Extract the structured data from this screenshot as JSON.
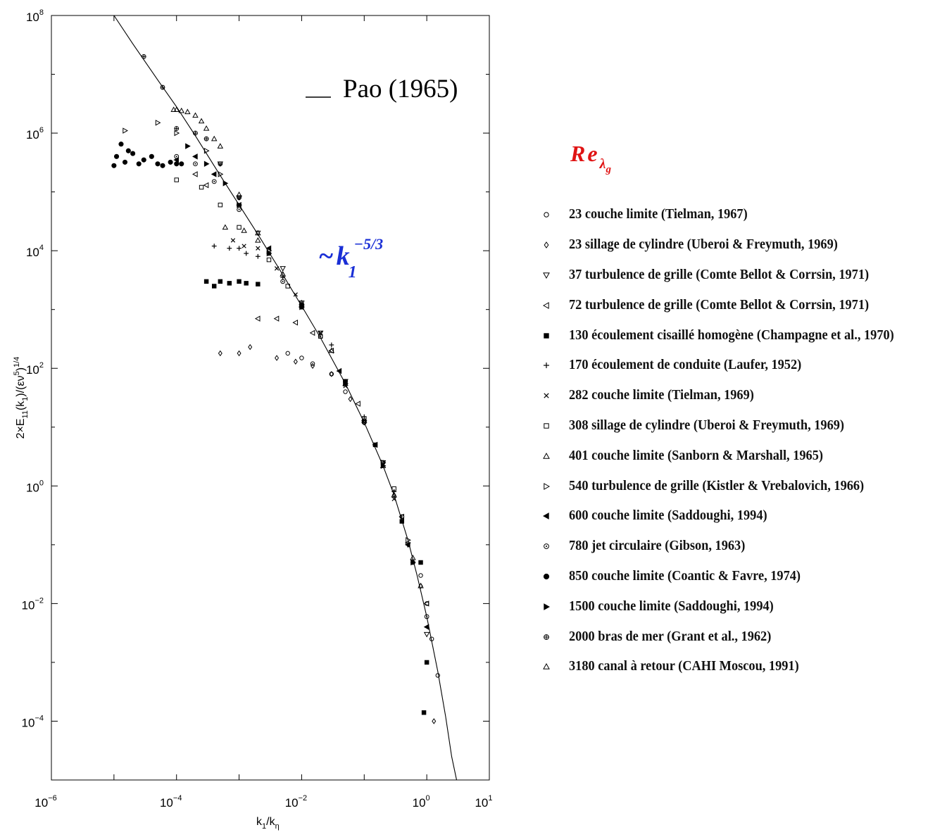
{
  "chart_data": {
    "type": "scatter",
    "x_scale": "log",
    "y_scale": "log",
    "xlim": [
      1e-06,
      10
    ],
    "ylim": [
      1e-05,
      100000000.0
    ],
    "xlabel": "k₁/kη",
    "ylabel": "2×E₁₁(k₁)/(εν⁵)¹ᐟ⁴",
    "x_ticks": [
      {
        "base": "10",
        "exp": "−6",
        "value": 1e-06
      },
      {
        "base": "10",
        "exp": "−4",
        "value": 0.0001
      },
      {
        "base": "10",
        "exp": "−2",
        "value": 0.01
      },
      {
        "base": "10",
        "exp": "0",
        "value": 1
      },
      {
        "base": "10",
        "exp": "1",
        "value": 10
      }
    ],
    "y_ticks": [
      {
        "base": "10",
        "exp": "8",
        "value": 100000000.0
      },
      {
        "base": "10",
        "exp": "6",
        "value": 1000000.0
      },
      {
        "base": "10",
        "exp": "4",
        "value": 10000.0
      },
      {
        "base": "10",
        "exp": "2",
        "value": 100.0
      },
      {
        "base": "10",
        "exp": "0",
        "value": 1
      },
      {
        "base": "10",
        "exp": "−2",
        "value": 0.01
      },
      {
        "base": "10",
        "exp": "−4",
        "value": 0.0001
      }
    ],
    "annotations": {
      "pao_label": "Pao (1965)",
      "power_law": "~k₁⁻⁵ᐟ³",
      "power_law_color": "#1a2fd6"
    },
    "reference_curve": {
      "name": "Pao (1965)",
      "points": [
        [
          1e-05,
          100000000.0
        ],
        [
          2e-05,
          33000000.0
        ],
        [
          5e-05,
          8000000.0
        ],
        [
          0.0001,
          2800000.0
        ],
        [
          0.0002,
          900000.0
        ],
        [
          0.0005,
          190000.0
        ],
        [
          0.001,
          60000.0
        ],
        [
          0.002,
          19000.0
        ],
        [
          0.005,
          3900.0
        ],
        [
          0.01,
          1150.0
        ],
        [
          0.02,
          330.0
        ],
        [
          0.05,
          55
        ],
        [
          0.1,
          12
        ],
        [
          0.2,
          2.2
        ],
        [
          0.3,
          0.7
        ],
        [
          0.5,
          0.12
        ],
        [
          0.7,
          0.03
        ],
        [
          1.0,
          0.006
        ],
        [
          1.5,
          0.0007
        ],
        [
          2.0,
          0.00012
        ],
        [
          2.5,
          2.5e-05
        ],
        [
          3.0,
          1e-05
        ]
      ]
    },
    "series": [
      {
        "name": "23 couche limite (Tielman, 1967)",
        "marker": "circle-open",
        "points": [
          [
            0.006,
            180
          ],
          [
            0.01,
            150
          ],
          [
            0.015,
            120
          ],
          [
            0.03,
            80
          ],
          [
            0.05,
            40
          ],
          [
            0.1,
            12
          ],
          [
            0.2,
            2.5
          ],
          [
            0.4,
            0.3
          ],
          [
            0.8,
            0.03
          ],
          [
            1.0,
            0.01
          ],
          [
            1.2,
            0.0025
          ],
          [
            1.5,
            0.0006
          ]
        ]
      },
      {
        "name": "23 sillage de cylindre (Uberoi & Freymuth, 1969)",
        "marker": "diamond-open",
        "points": [
          [
            0.0005,
            180
          ],
          [
            0.001,
            180
          ],
          [
            0.0015,
            230
          ],
          [
            0.004,
            150
          ],
          [
            0.008,
            130
          ],
          [
            0.015,
            110
          ],
          [
            0.03,
            80
          ],
          [
            0.06,
            30
          ],
          [
            0.1,
            12
          ],
          [
            0.3,
            0.7
          ],
          [
            0.8,
            0.02
          ],
          [
            1.3,
            0.0001
          ]
        ]
      },
      {
        "name": "37 turbulence de grille (Comte Bellot & Corrsin, 1971)",
        "marker": "tri-down-open",
        "points": [
          [
            0.0005,
            300000.0
          ],
          [
            0.001,
            80000.0
          ],
          [
            0.002,
            20000.0
          ],
          [
            0.005,
            5000
          ],
          [
            0.01,
            1300
          ],
          [
            0.02,
            400
          ],
          [
            0.05,
            60
          ],
          [
            0.1,
            12
          ],
          [
            0.2,
            2.5
          ],
          [
            0.5,
            0.1
          ],
          [
            1.0,
            0.003
          ]
        ]
      },
      {
        "name": "72 turbulence de grille (Comte Bellot & Corrsin, 1971)",
        "marker": "tri-left-open",
        "points": [
          [
            0.0002,
            200000.0
          ],
          [
            0.0003,
            130000.0
          ],
          [
            0.002,
            700
          ],
          [
            0.004,
            700
          ],
          [
            0.008,
            600
          ],
          [
            0.015,
            400
          ],
          [
            0.03,
            200
          ],
          [
            0.08,
            25
          ],
          [
            0.15,
            5
          ],
          [
            0.4,
            0.3
          ],
          [
            1.0,
            0.01
          ]
        ]
      },
      {
        "name": "130 écoulement cisaillé homogène (Champagne et al., 1970)",
        "marker": "square-filled",
        "points": [
          [
            0.0003,
            3000
          ],
          [
            0.0004,
            2500
          ],
          [
            0.0005,
            3000
          ],
          [
            0.0007,
            2800
          ],
          [
            0.001,
            3000
          ],
          [
            0.0013,
            2800
          ],
          [
            0.002,
            2700
          ],
          [
            0.01,
            1200
          ],
          [
            0.05,
            60
          ],
          [
            0.15,
            5
          ],
          [
            0.4,
            0.25
          ],
          [
            0.8,
            0.05
          ],
          [
            1.0,
            0.001
          ],
          [
            0.9,
            0.00014
          ]
        ]
      },
      {
        "name": "170 écoulement de conduite (Laufer, 1952)",
        "marker": "plus",
        "points": [
          [
            0.0004,
            12000.0
          ],
          [
            0.0007,
            11000.0
          ],
          [
            0.001,
            11000.0
          ],
          [
            0.0013,
            9000
          ],
          [
            0.002,
            8000
          ],
          [
            0.005,
            3500
          ],
          [
            0.01,
            1200
          ],
          [
            0.03,
            250
          ],
          [
            0.1,
            15
          ],
          [
            0.3,
            0.8
          ]
        ]
      },
      {
        "name": "282 couche limite (Tielman, 1969)",
        "marker": "cross",
        "points": [
          [
            0.0008,
            15000.0
          ],
          [
            0.0012,
            12000.0
          ],
          [
            0.002,
            11000.0
          ],
          [
            0.004,
            5000
          ],
          [
            0.008,
            1800
          ],
          [
            0.02,
            400
          ],
          [
            0.05,
            50
          ],
          [
            0.1,
            13
          ],
          [
            0.3,
            0.6
          ]
        ]
      },
      {
        "name": "308 sillage de cylindre (Uberoi & Freymuth, 1969)",
        "marker": "square-open",
        "points": [
          [
            0.0001,
            160000.0
          ],
          [
            0.00025,
            120000.0
          ],
          [
            0.0005,
            60000.0
          ],
          [
            0.001,
            25000.0
          ],
          [
            0.003,
            7000
          ],
          [
            0.006,
            2500
          ],
          [
            0.02,
            350
          ],
          [
            0.1,
            14
          ],
          [
            0.3,
            0.9
          ]
        ]
      },
      {
        "name": "401 couche limite (Sanborn & Marshall, 1965)",
        "marker": "triangle-open",
        "points": [
          [
            0.0006,
            25000.0
          ],
          [
            0.0012,
            22000.0
          ],
          [
            0.002,
            15000.0
          ],
          [
            0.005,
            4000
          ],
          [
            0.01,
            1300
          ],
          [
            0.05,
            55
          ],
          [
            0.2,
            2.2
          ],
          [
            0.6,
            0.06
          ]
        ]
      },
      {
        "name": "540 turbulence de grille (Kistler & Vrebalovich, 1966)",
        "marker": "tri-right-open",
        "points": [
          [
            1.5e-05,
            1100000.0
          ],
          [
            5e-05,
            1500000.0
          ],
          [
            0.0001,
            1000000.0
          ],
          [
            0.0003,
            500000.0
          ],
          [
            0.0005,
            200000.0
          ],
          [
            0.001,
            60000.0
          ],
          [
            0.003,
            10000.0
          ],
          [
            0.01,
            1200
          ],
          [
            0.05,
            55
          ],
          [
            0.2,
            2.5
          ],
          [
            0.5,
            0.12
          ]
        ]
      },
      {
        "name": "600 couche limite (Saddoughi, 1994)",
        "marker": "tri-left-filled",
        "points": [
          [
            0.0001,
            350000.0
          ],
          [
            0.0002,
            400000.0
          ],
          [
            0.0004,
            200000.0
          ],
          [
            0.001,
            60000.0
          ],
          [
            0.003,
            11000.0
          ],
          [
            0.01,
            1100
          ],
          [
            0.04,
            90
          ],
          [
            0.15,
            5
          ],
          [
            0.5,
            0.1
          ],
          [
            1.0,
            0.004
          ]
        ]
      },
      {
        "name": "780 jet circulaire (Gibson, 1963)",
        "marker": "circle-dot",
        "points": [
          [
            0.0001,
            400000.0
          ],
          [
            0.0002,
            300000.0
          ],
          [
            0.0004,
            150000.0
          ],
          [
            0.001,
            50000.0
          ],
          [
            0.005,
            3000
          ],
          [
            0.02,
            350
          ],
          [
            0.1,
            12
          ],
          [
            0.4,
            0.3
          ],
          [
            1.0,
            0.006
          ]
        ]
      },
      {
        "name": "850 couche limite (Coantic & Favre, 1974)",
        "marker": "circle-filled",
        "points": [
          [
            1e-05,
            280000.0
          ],
          [
            1.1e-05,
            400000.0
          ],
          [
            1.3e-05,
            650000.0
          ],
          [
            1.5e-05,
            320000.0
          ],
          [
            1.7e-05,
            500000.0
          ],
          [
            2e-05,
            450000.0
          ],
          [
            2.5e-05,
            300000.0
          ],
          [
            3e-05,
            350000.0
          ],
          [
            4e-05,
            400000.0
          ],
          [
            5e-05,
            300000.0
          ],
          [
            6e-05,
            280000.0
          ],
          [
            8e-05,
            320000.0
          ],
          [
            0.0001,
            300000.0
          ],
          [
            0.00012,
            300000.0
          ]
        ]
      },
      {
        "name": "1500 couche limite (Saddoughi, 1994)",
        "marker": "tri-right-filled",
        "points": [
          [
            0.00015,
            600000.0
          ],
          [
            0.0003,
            300000.0
          ],
          [
            0.0006,
            140000.0
          ],
          [
            0.001,
            60000.0
          ],
          [
            0.003,
            9000
          ],
          [
            0.01,
            1100
          ],
          [
            0.05,
            55
          ],
          [
            0.2,
            2.2
          ],
          [
            0.6,
            0.05
          ]
        ]
      },
      {
        "name": "2000 bras de mer (Grant et al., 1962)",
        "marker": "circle-plus",
        "points": [
          [
            3e-05,
            20000000.0
          ],
          [
            6e-05,
            6000000.0
          ],
          [
            0.0001,
            1200000.0
          ],
          [
            0.0002,
            1000000.0
          ],
          [
            0.0003,
            800000.0
          ],
          [
            0.0005,
            300000.0
          ],
          [
            0.001,
            80000.0
          ],
          [
            0.003,
            9000
          ],
          [
            0.01,
            1100
          ],
          [
            0.05,
            60
          ],
          [
            0.2,
            2.5
          ],
          [
            0.6,
            0.05
          ]
        ]
      },
      {
        "name": "3180 canal à retour (CAHI Moscou, 1991)",
        "marker": "triangle-open",
        "points": [
          [
            9e-05,
            2500000.0
          ],
          [
            0.0001,
            2500000.0
          ],
          [
            0.00012,
            2400000.0
          ],
          [
            0.00015,
            2300000.0
          ],
          [
            0.0002,
            2000000.0
          ],
          [
            0.00025,
            1600000.0
          ],
          [
            0.0003,
            1200000.0
          ],
          [
            0.0004,
            800000.0
          ],
          [
            0.0005,
            600000.0
          ],
          [
            0.001,
            90000.0
          ],
          [
            0.002,
            20000.0
          ],
          [
            0.005,
            4000
          ],
          [
            0.01,
            1200
          ],
          [
            0.03,
            200
          ],
          [
            0.1,
            13
          ],
          [
            0.3,
            0.7
          ],
          [
            0.8,
            0.02
          ]
        ]
      }
    ]
  },
  "legend": {
    "title_main": "Re",
    "title_sub": "λ",
    "title_sub2": "g",
    "title_color": "#e01414",
    "items": [
      {
        "symbol": "circle-open",
        "text": "23 couche limite (Tielman, 1967)"
      },
      {
        "symbol": "diamond-open",
        "text": "23 sillage de cylindre (Uberoi & Freymuth, 1969)"
      },
      {
        "symbol": "tri-down-open",
        "text": "37 turbulence de grille (Comte Bellot & Corrsin, 1971)"
      },
      {
        "symbol": "tri-left-open",
        "text": "72 turbulence de grille (Comte Bellot & Corrsin, 1971)"
      },
      {
        "symbol": "square-filled",
        "text": "130 écoulement cisaillé homogène (Champagne et al., 1970)"
      },
      {
        "symbol": "plus",
        "text": "170 écoulement de conduite (Laufer, 1952)"
      },
      {
        "symbol": "cross",
        "text": "282 couche limite (Tielman, 1969)"
      },
      {
        "symbol": "square-open",
        "text": "308 sillage de cylindre (Uberoi & Freymuth, 1969)"
      },
      {
        "symbol": "triangle-open",
        "text": "401 couche limite (Sanborn & Marshall, 1965)"
      },
      {
        "symbol": "tri-right-open",
        "text": "540 turbulence de grille (Kistler & Vrebalovich, 1966)"
      },
      {
        "symbol": "tri-left-filled",
        "text": "600 couche limite (Saddoughi, 1994)"
      },
      {
        "symbol": "circle-dot",
        "text": "780 jet circulaire (Gibson, 1963)"
      },
      {
        "symbol": "circle-filled",
        "text": "850 couche limite (Coantic & Favre, 1974)"
      },
      {
        "symbol": "tri-right-filled",
        "text": "1500 couche limite (Saddoughi, 1994)"
      },
      {
        "symbol": "circle-plus",
        "text": "2000 bras de mer (Grant et al., 1962)"
      },
      {
        "symbol": "triangle-open",
        "text": "3180 canal à retour (CAHI Moscou, 1991)"
      }
    ]
  }
}
